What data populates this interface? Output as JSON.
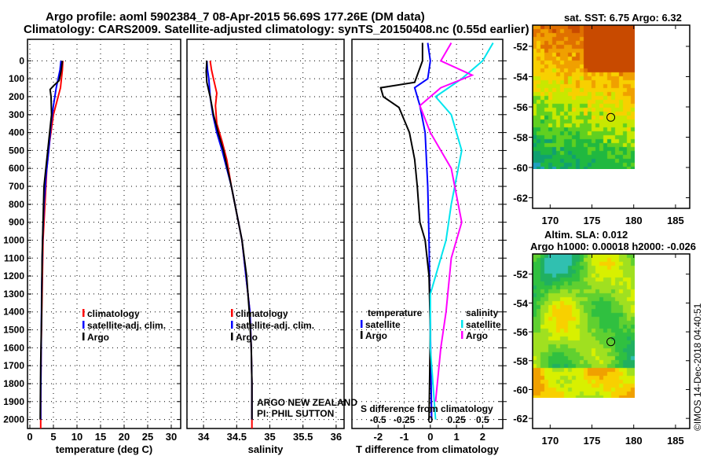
{
  "title_line1": "Argo profile: aoml 5902384_7 08-Apr-2015 56.69S 177.26E (DM data)",
  "title_line2": "Climatology: CARS2009. Satellite-adjusted climatology: synTS_20150408.nc (0.55d earlier)",
  "credit": "©IMOS 14-Dec-2018 04:40:51",
  "colors": {
    "climatology": "#ff0000",
    "satellite": "#0000ff",
    "argo": "#000000",
    "sal_satellite": "#00e5ee",
    "sal_argo": "#ff00ff"
  },
  "chart_data": [
    {
      "type": "line",
      "name": "temperature",
      "xlabel": "temperature (deg C)",
      "xlim": [
        -0.5,
        32
      ],
      "ylim": [
        -120,
        2050
      ],
      "xticks": [
        0,
        5,
        10,
        15,
        20,
        25,
        30
      ],
      "yticks": [
        0,
        100,
        200,
        300,
        400,
        500,
        600,
        700,
        800,
        900,
        1000,
        1100,
        1200,
        1300,
        1400,
        1500,
        1600,
        1700,
        1800,
        1900,
        2000
      ],
      "legend": [
        "climatology",
        "satellite-adj. clim.",
        "Argo"
      ],
      "series": [
        {
          "name": "climatology",
          "color": "#ff0000",
          "points": [
            [
              7.0,
              0
            ],
            [
              6.9,
              50
            ],
            [
              6.5,
              150
            ],
            [
              6.0,
              200
            ],
            [
              5.0,
              300
            ],
            [
              4.2,
              450
            ],
            [
              3.6,
              600
            ],
            [
              3.2,
              800
            ],
            [
              2.8,
              1000
            ],
            [
              2.6,
              1300
            ],
            [
              2.4,
              1600
            ],
            [
              2.3,
              1900
            ],
            [
              2.3,
              2050
            ]
          ]
        },
        {
          "name": "satellite-adj. clim.",
          "color": "#0000ff",
          "points": [
            [
              6.6,
              0
            ],
            [
              6.4,
              50
            ],
            [
              5.6,
              150
            ],
            [
              5.0,
              250
            ],
            [
              4.5,
              350
            ],
            [
              4.0,
              500
            ],
            [
              3.4,
              650
            ],
            [
              3.0,
              800
            ],
            [
              2.7,
              1000
            ],
            [
              2.5,
              1300
            ],
            [
              2.4,
              1600
            ],
            [
              2.3,
              1900
            ],
            [
              2.3,
              2000
            ]
          ]
        },
        {
          "name": "Argo",
          "color": "#000000",
          "points": [
            [
              6.9,
              0
            ],
            [
              6.6,
              60
            ],
            [
              6.2,
              110
            ],
            [
              5.0,
              140
            ],
            [
              4.3,
              160
            ],
            [
              4.5,
              200
            ],
            [
              4.6,
              300
            ],
            [
              4.2,
              400
            ],
            [
              3.8,
              500
            ],
            [
              3.4,
              600
            ],
            [
              3.0,
              700
            ],
            [
              2.8,
              900
            ],
            [
              2.6,
              1100
            ],
            [
              2.5,
              1400
            ],
            [
              2.3,
              1700
            ],
            [
              2.2,
              2000
            ]
          ]
        }
      ]
    },
    {
      "type": "line",
      "name": "salinity",
      "xlabel": "salinity",
      "xlim": [
        33.75,
        36.12
      ],
      "ylim": [
        -120,
        2050
      ],
      "xticks": [
        34,
        34.5,
        35,
        35.5,
        36
      ],
      "legend": [
        "climatology",
        "satellite-adj. clim.",
        "Argo"
      ],
      "annotation": [
        "ARGO NEW ZEALAND",
        "PI: PHIL SUTTON"
      ],
      "series": [
        {
          "name": "climatology",
          "color": "#ff0000",
          "points": [
            [
              34.1,
              0
            ],
            [
              34.12,
              50
            ],
            [
              34.15,
              100
            ],
            [
              34.2,
              180
            ],
            [
              34.18,
              250
            ],
            [
              34.2,
              350
            ],
            [
              34.28,
              450
            ],
            [
              34.35,
              550
            ],
            [
              34.42,
              700
            ],
            [
              34.5,
              850
            ],
            [
              34.58,
              1000
            ],
            [
              34.64,
              1200
            ],
            [
              34.7,
              1400
            ],
            [
              34.72,
              1600
            ],
            [
              34.73,
              1800
            ],
            [
              34.73,
              2050
            ]
          ]
        },
        {
          "name": "satellite-adj. clim.",
          "color": "#0000ff",
          "points": [
            [
              34.05,
              0
            ],
            [
              34.06,
              50
            ],
            [
              34.08,
              100
            ],
            [
              34.1,
              200
            ],
            [
              34.14,
              300
            ],
            [
              34.2,
              400
            ],
            [
              34.28,
              500
            ],
            [
              34.35,
              600
            ],
            [
              34.42,
              700
            ],
            [
              34.5,
              850
            ],
            [
              34.58,
              1000
            ],
            [
              34.64,
              1200
            ],
            [
              34.7,
              1400
            ],
            [
              34.72,
              1600
            ],
            [
              34.73,
              1800
            ],
            [
              34.73,
              2000
            ]
          ]
        },
        {
          "name": "Argo",
          "color": "#000000",
          "points": [
            [
              34.05,
              0
            ],
            [
              34.04,
              60
            ],
            [
              34.05,
              120
            ],
            [
              34.1,
              200
            ],
            [
              34.15,
              300
            ],
            [
              34.22,
              400
            ],
            [
              34.3,
              500
            ],
            [
              34.36,
              600
            ],
            [
              34.42,
              700
            ],
            [
              34.5,
              850
            ],
            [
              34.58,
              1000
            ],
            [
              34.65,
              1200
            ],
            [
              34.69,
              1400
            ],
            [
              34.72,
              1600
            ],
            [
              34.73,
              1800
            ],
            [
              34.73,
              2000
            ]
          ]
        }
      ]
    },
    {
      "type": "line",
      "name": "difference",
      "xlabel": "T difference from climatology",
      "x2label": "S difference from climatology",
      "xlim": [
        -3,
        2.77
      ],
      "ylim": [
        -120,
        2050
      ],
      "xticks": [
        "-2",
        "-1",
        "0",
        "1",
        "2"
      ],
      "x2ticks": [
        "-0.5",
        "-0.25",
        "0",
        "0.25",
        "0.5"
      ],
      "legend_t_title": "temperature",
      "legend_s_title": "salinity",
      "legend_t": [
        "satellite",
        "Argo"
      ],
      "legend_s": [
        "satellite",
        "Argo"
      ],
      "series": [
        {
          "name": "T satellite",
          "color": "#0000ff",
          "points": [
            [
              -0.1,
              -100
            ],
            [
              0,
              0
            ],
            [
              -0.1,
              100
            ],
            [
              -0.6,
              150
            ],
            [
              -0.4,
              250
            ],
            [
              -0.2,
              400
            ],
            [
              -0.1,
              700
            ],
            [
              -0.05,
              1000
            ],
            [
              0,
              1500
            ],
            [
              0.05,
              2000
            ]
          ]
        },
        {
          "name": "T Argo",
          "color": "#000000",
          "points": [
            [
              -0.3,
              -100
            ],
            [
              -0.3,
              0
            ],
            [
              -0.6,
              120
            ],
            [
              -1.9,
              150
            ],
            [
              -1.8,
              200
            ],
            [
              -1.2,
              260
            ],
            [
              -0.8,
              400
            ],
            [
              -0.6,
              550
            ],
            [
              -0.5,
              700
            ],
            [
              -0.4,
              900
            ],
            [
              -0.2,
              1000
            ],
            [
              -0.05,
              1200
            ],
            [
              0,
              1500
            ],
            [
              -0.05,
              2000
            ]
          ]
        },
        {
          "name": "S satellite",
          "color": "#00e5ee",
          "points": [
            [
              0.6,
              -100
            ],
            [
              0.5,
              0
            ],
            [
              0.3,
              100
            ],
            [
              0.05,
              200
            ],
            [
              0.2,
              300
            ],
            [
              0.3,
              500
            ],
            [
              0.2,
              800
            ],
            [
              0.15,
              1000
            ],
            [
              0,
              1300
            ],
            [
              0,
              1600
            ],
            [
              0.05,
              2000
            ]
          ]
        },
        {
          "name": "S Argo",
          "color": "#ff00ff",
          "points": [
            [
              0.2,
              -100
            ],
            [
              0.1,
              0
            ],
            [
              0.4,
              80
            ],
            [
              0.1,
              150
            ],
            [
              -0.1,
              250
            ],
            [
              0,
              400
            ],
            [
              0.2,
              600
            ],
            [
              0.3,
              900
            ],
            [
              0.2,
              1100
            ],
            [
              0.15,
              1400
            ],
            [
              0.1,
              1600
            ],
            [
              0.05,
              1900
            ]
          ]
        }
      ]
    },
    {
      "type": "heatmap",
      "name": "sst-map",
      "title": "sat. SST: 6.75 Argo: 6.32",
      "xlim": [
        167.9,
        186.7
      ],
      "ylim": [
        -62.7,
        -50.6
      ],
      "xticks": [
        170,
        175,
        180,
        185
      ],
      "yticks": [
        -52,
        -54,
        -56,
        -58,
        -60,
        -62
      ],
      "argo_position": [
        177.26,
        -56.69
      ]
    },
    {
      "type": "heatmap",
      "name": "sla-map",
      "title": "Altim. SLA: 0.012",
      "subtitle": "Argo h1000: 0.00018 h2000: -0.026",
      "xlim": [
        167.9,
        186.7
      ],
      "ylim": [
        -62.7,
        -50.6
      ],
      "xticks": [
        170,
        175,
        180,
        185
      ],
      "yticks": [
        -52,
        -54,
        -56,
        -58,
        -60,
        -62
      ],
      "argo_position": [
        177.26,
        -56.69
      ]
    }
  ]
}
